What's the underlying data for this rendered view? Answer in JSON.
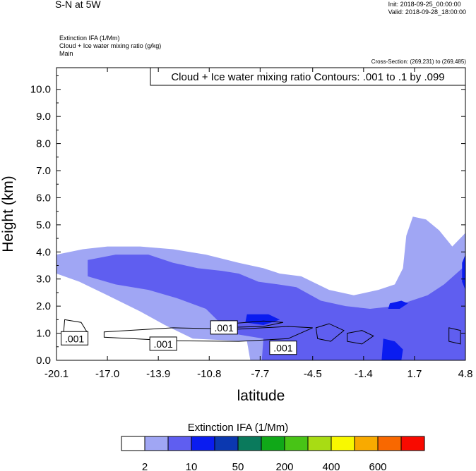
{
  "header": {
    "title": "S-N at 5W",
    "init": "Init: 2018-09-25_00:00:00",
    "valid": "Valid: 2018-09-28_18:00:00"
  },
  "fields": {
    "line1": "Extinction IFA   (1/Mm)",
    "line2": "Cloud + Ice water mixing ratio   (g/kg)",
    "line3": "Main"
  },
  "cross_section": "Cross-Section: (269,231) to (269,485)",
  "contour_info": "Cloud + Ice water mixing ratio Contours: .001 to .1 by .099",
  "contour_label": ".001",
  "colorbar": {
    "title": "Extinction IFA  (1/Mm)",
    "colors": [
      "#ffffff",
      "#a0a6f4",
      "#5f5ef0",
      "#0a1cf0",
      "#0b38b0",
      "#0a7a5c",
      "#10a818",
      "#48c416",
      "#a8dc14",
      "#f8f800",
      "#f8aa00",
      "#f86800",
      "#f80a00"
    ],
    "labels": [
      "2",
      "10",
      "50",
      "200",
      "400",
      "600"
    ]
  },
  "chart_data": {
    "type": "heatmap",
    "xlabel": "latitude",
    "ylabel": "Height (km)",
    "xlim": [
      -20.1,
      4.8
    ],
    "ylim": [
      0.0,
      10.8
    ],
    "x_ticks": [
      "-20.1",
      "-17.0",
      "-13.9",
      "-10.8",
      "-7.7",
      "-4.5",
      "-1.4",
      "1.7",
      "4.8"
    ],
    "y_ticks": [
      "0.0",
      "1.0",
      "2.0",
      "3.0",
      "4.0",
      "5.0",
      "6.0",
      "7.0",
      "8.0",
      "9.0",
      "10.0"
    ],
    "filled_regions": [
      {
        "level": "2-10",
        "color": "#a0a6f4",
        "points": [
          [
            -20.1,
            3.9
          ],
          [
            -18.5,
            4.1
          ],
          [
            -17,
            4.2
          ],
          [
            -15,
            4.2
          ],
          [
            -13,
            4.1
          ],
          [
            -11,
            3.9
          ],
          [
            -9,
            3.6
          ],
          [
            -7.5,
            3.4
          ],
          [
            -6.5,
            3.2
          ],
          [
            -5.2,
            3.1
          ],
          [
            -3.5,
            2.6
          ],
          [
            -2,
            2.4
          ],
          [
            -0.5,
            2.6
          ],
          [
            0.5,
            2.8
          ],
          [
            1,
            3.4
          ],
          [
            1.2,
            4.6
          ],
          [
            1.6,
            5.3
          ],
          [
            2.4,
            5.2
          ],
          [
            3.2,
            4.8
          ],
          [
            4.0,
            4.2
          ],
          [
            4.8,
            4.7
          ],
          [
            4.8,
            0
          ],
          [
            -8.3,
            0
          ],
          [
            -8.5,
            0.7
          ],
          [
            -11.8,
            0.8
          ],
          [
            -13.5,
            1.3
          ],
          [
            -15,
            1.8
          ],
          [
            -17,
            2.4
          ],
          [
            -18.7,
            2.9
          ],
          [
            -20.1,
            3.2
          ]
        ]
      },
      {
        "level": "10-50",
        "color": "#5f5ef0",
        "points": [
          [
            -18.2,
            3.7
          ],
          [
            -16.5,
            3.9
          ],
          [
            -14.5,
            3.9
          ],
          [
            -13,
            3.6
          ],
          [
            -11.5,
            3.4
          ],
          [
            -10,
            3.3
          ],
          [
            -9,
            3.2
          ],
          [
            -7.8,
            2.9
          ],
          [
            -6.6,
            2.8
          ],
          [
            -5.5,
            2.7
          ],
          [
            -4,
            2.2
          ],
          [
            -2.5,
            2.0
          ],
          [
            -1,
            1.9
          ],
          [
            0.5,
            2.0
          ],
          [
            1.5,
            2.2
          ],
          [
            2.5,
            2.4
          ],
          [
            3.5,
            2.8
          ],
          [
            4.8,
            3.5
          ],
          [
            4.8,
            0
          ],
          [
            -7.6,
            0
          ],
          [
            -7.5,
            0.8
          ],
          [
            -9.5,
            1.0
          ],
          [
            -11,
            1.9
          ],
          [
            -12.8,
            2.3
          ],
          [
            -14.5,
            2.6
          ],
          [
            -16.5,
            2.8
          ],
          [
            -18.2,
            3.1
          ]
        ]
      },
      {
        "level": "50-200",
        "color": "#0a1cf0",
        "points": [
          [
            -8.5,
            1.7
          ],
          [
            -7.2,
            1.7
          ],
          [
            -6.5,
            1.5
          ],
          [
            -7.5,
            1.3
          ],
          [
            -8.6,
            1.4
          ]
        ]
      },
      {
        "level": "50-200",
        "color": "#0a1cf0",
        "points": [
          [
            0.2,
            2.1
          ],
          [
            0.9,
            2.2
          ],
          [
            1.3,
            2.1
          ],
          [
            0.8,
            1.9
          ],
          [
            0.1,
            1.9
          ]
        ]
      },
      {
        "level": "50-200",
        "color": "#0a1cf0",
        "points": [
          [
            -0.2,
            0.8
          ],
          [
            0.5,
            0.7
          ],
          [
            1.0,
            0.4
          ],
          [
            0.9,
            0.0
          ],
          [
            -0.3,
            0.0
          ]
        ]
      },
      {
        "level": "50-200",
        "color": "#0a1cf0",
        "points": [
          [
            4.6,
            3.6
          ],
          [
            4.8,
            3.9
          ],
          [
            4.8,
            2.6
          ],
          [
            4.6,
            2.9
          ]
        ]
      }
    ],
    "contour_loops": [
      [
        [
          -17.2,
          1.05
        ],
        [
          -13,
          1.2
        ],
        [
          -9,
          1.15
        ],
        [
          -6,
          1.25
        ],
        [
          -4.5,
          1.2
        ],
        [
          -6,
          0.8
        ],
        [
          -9,
          0.7
        ],
        [
          -13,
          0.72
        ],
        [
          -17.2,
          0.85
        ]
      ],
      [
        [
          -10.5,
          1.3
        ],
        [
          -7.5,
          1.45
        ],
        [
          -6.3,
          1.4
        ],
        [
          -7.5,
          1.25
        ],
        [
          -10.5,
          1.2
        ]
      ],
      [
        [
          -19.6,
          1.5
        ],
        [
          -18.6,
          1.4
        ],
        [
          -18.2,
          1.0
        ],
        [
          -18.8,
          0.6
        ],
        [
          -19.7,
          0.8
        ]
      ],
      [
        [
          -4.3,
          1.2
        ],
        [
          -3.5,
          1.35
        ],
        [
          -2.6,
          1.1
        ],
        [
          -3.4,
          0.7
        ],
        [
          -4.2,
          0.8
        ]
      ],
      [
        [
          -2.4,
          1.0
        ],
        [
          -1.5,
          1.1
        ],
        [
          -0.8,
          0.9
        ],
        [
          -1.5,
          0.6
        ],
        [
          -2.4,
          0.7
        ]
      ],
      [
        [
          3.8,
          1.2
        ],
        [
          4.5,
          1.1
        ],
        [
          4.5,
          0.6
        ],
        [
          3.8,
          0.7
        ]
      ]
    ],
    "contour_label_positions": [
      [
        -19.0,
        0.8
      ],
      [
        -9.9,
        1.2
      ],
      [
        -13.6,
        0.6
      ],
      [
        -6.3,
        0.45
      ]
    ]
  }
}
